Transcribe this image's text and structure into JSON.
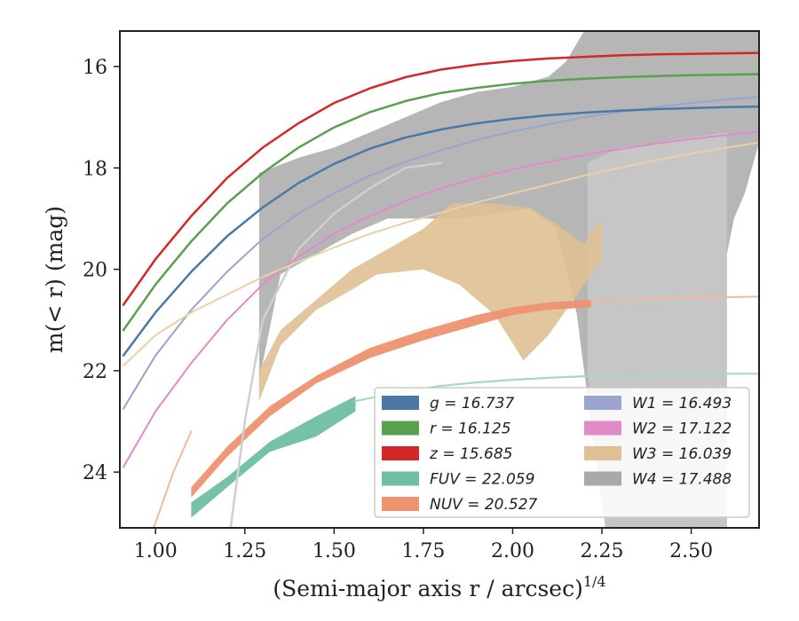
{
  "chart_data": {
    "type": "line",
    "xlabel_main": "(Semi-major axis r / arcsec)",
    "xlabel_power": "1/4",
    "ylabel": "m(< r) (mag)",
    "xlim": [
      0.9,
      2.69
    ],
    "ylim": [
      25.1,
      15.3
    ],
    "y_inverted": true,
    "grid": false,
    "legend_position": "lower-right",
    "x_ticks": [
      1.0,
      1.25,
      1.5,
      1.75,
      2.0,
      2.25,
      2.5
    ],
    "x_tick_labels": [
      "1.00",
      "1.25",
      "1.50",
      "1.75",
      "2.00",
      "2.25",
      "2.50"
    ],
    "y_ticks": [
      16,
      18,
      20,
      22,
      24
    ],
    "y_tick_labels": [
      "16",
      "18",
      "20",
      "22",
      "24"
    ],
    "legend": [
      {
        "label": "g = 16.737",
        "color": "#4c78a8"
      },
      {
        "label": "W1 = 16.493",
        "color": "#9aa4cc"
      },
      {
        "label": "r = 16.125",
        "color": "#59a14f"
      },
      {
        "label": "W2 = 17.122",
        "color": "#e08bc7"
      },
      {
        "label": "z = 15.685",
        "color": "#d62728"
      },
      {
        "label": "W3 = 16.039",
        "color": "#dfc094"
      },
      {
        "label": "FUV = 22.059",
        "color": "#6fbfa3"
      },
      {
        "label": "W4 = 17.488",
        "color": "#a9a9a9"
      },
      {
        "label": "NUV = 20.527",
        "color": "#ee9270"
      }
    ],
    "series": [
      {
        "name": "W4",
        "kind": "band",
        "color": "#a9a9a9",
        "opacity": 0.85,
        "upper": [
          [
            1.29,
            18.1
          ],
          [
            1.4,
            17.8
          ],
          [
            1.5,
            17.6
          ],
          [
            1.6,
            17.3
          ],
          [
            1.7,
            17.0
          ],
          [
            1.8,
            16.7
          ],
          [
            1.9,
            16.5
          ],
          [
            2.0,
            16.4
          ],
          [
            2.1,
            16.2
          ],
          [
            2.15,
            15.9
          ],
          [
            2.2,
            15.3
          ],
          [
            2.69,
            15.3
          ]
        ],
        "lower": [
          [
            2.69,
            17.5
          ],
          [
            2.65,
            18.5
          ],
          [
            2.62,
            19.0
          ],
          [
            2.6,
            19.7
          ],
          [
            2.6,
            25.1
          ],
          [
            2.26,
            25.1
          ],
          [
            2.2,
            22.0
          ],
          [
            2.18,
            20.9
          ],
          [
            2.15,
            20.0
          ],
          [
            2.12,
            19.2
          ],
          [
            2.05,
            18.8
          ],
          [
            1.95,
            18.9
          ],
          [
            1.85,
            19.0
          ],
          [
            1.75,
            19.0
          ],
          [
            1.65,
            19.0
          ],
          [
            1.55,
            19.3
          ],
          [
            1.45,
            19.7
          ],
          [
            1.35,
            20.1
          ],
          [
            1.29,
            22.2
          ]
        ]
      },
      {
        "name": "W4-tail",
        "kind": "band",
        "color": "#d3d3d3",
        "opacity": 0.55,
        "upper": [
          [
            2.21,
            17.9
          ],
          [
            2.3,
            17.6
          ],
          [
            2.4,
            17.5
          ],
          [
            2.5,
            17.4
          ],
          [
            2.6,
            17.3
          ]
        ],
        "lower": [
          [
            2.6,
            25.1
          ],
          [
            2.45,
            25.1
          ],
          [
            2.35,
            25.1
          ],
          [
            2.26,
            25.1
          ],
          [
            2.21,
            22.0
          ]
        ]
      },
      {
        "name": "W3",
        "kind": "band",
        "color": "#dfc094",
        "opacity": 0.9,
        "upper": [
          [
            1.29,
            22.0
          ],
          [
            1.35,
            21.2
          ],
          [
            1.45,
            20.6
          ],
          [
            1.55,
            20.0
          ],
          [
            1.65,
            19.6
          ],
          [
            1.75,
            19.2
          ],
          [
            1.83,
            18.7
          ],
          [
            1.95,
            18.7
          ],
          [
            2.05,
            18.8
          ],
          [
            2.12,
            19.1
          ],
          [
            2.2,
            19.5
          ],
          [
            2.25,
            19.0
          ]
        ],
        "lower": [
          [
            2.25,
            19.8
          ],
          [
            2.2,
            20.3
          ],
          [
            2.1,
            21.3
          ],
          [
            2.03,
            21.8
          ],
          [
            1.95,
            20.9
          ],
          [
            1.85,
            20.3
          ],
          [
            1.75,
            20.0
          ],
          [
            1.62,
            20.1
          ],
          [
            1.55,
            20.4
          ],
          [
            1.45,
            20.8
          ],
          [
            1.35,
            21.5
          ],
          [
            1.29,
            22.6
          ]
        ]
      },
      {
        "name": "FUV",
        "kind": "band",
        "color": "#6fbfa3",
        "opacity": 0.95,
        "upper": [
          [
            1.1,
            24.6
          ],
          [
            1.2,
            24.1
          ],
          [
            1.32,
            23.4
          ],
          [
            1.45,
            22.9
          ],
          [
            1.56,
            22.5
          ]
        ],
        "lower": [
          [
            1.56,
            22.8
          ],
          [
            1.45,
            23.3
          ],
          [
            1.32,
            23.6
          ],
          [
            1.2,
            24.3
          ],
          [
            1.1,
            24.9
          ]
        ]
      },
      {
        "name": "NUV",
        "kind": "band",
        "color": "#ee9270",
        "opacity": 0.95,
        "upper": [
          [
            1.1,
            24.3
          ],
          [
            1.2,
            23.5
          ],
          [
            1.32,
            22.7
          ],
          [
            1.45,
            22.1
          ],
          [
            1.6,
            21.55
          ],
          [
            1.75,
            21.2
          ],
          [
            1.9,
            20.9
          ],
          [
            2.0,
            20.75
          ],
          [
            2.1,
            20.65
          ],
          [
            2.22,
            20.6
          ]
        ],
        "lower": [
          [
            2.22,
            20.75
          ],
          [
            2.1,
            20.8
          ],
          [
            2.0,
            20.9
          ],
          [
            1.9,
            21.1
          ],
          [
            1.75,
            21.4
          ],
          [
            1.6,
            21.75
          ],
          [
            1.45,
            22.25
          ],
          [
            1.32,
            22.9
          ],
          [
            1.2,
            23.7
          ],
          [
            1.1,
            24.5
          ]
        ]
      },
      {
        "name": "W4 curve",
        "kind": "line",
        "color": "#cfcfcf",
        "width": 2.5,
        "points": [
          [
            1.21,
            25.1
          ],
          [
            1.25,
            23.0
          ],
          [
            1.3,
            21.0
          ],
          [
            1.4,
            19.6
          ],
          [
            1.5,
            18.9
          ],
          [
            1.6,
            18.4
          ],
          [
            1.7,
            18.0
          ],
          [
            1.8,
            17.9
          ]
        ]
      },
      {
        "name": "W1",
        "kind": "line",
        "color": "#9aa4cc",
        "width": 2.0,
        "points": [
          [
            0.91,
            22.75
          ],
          [
            1.0,
            21.7
          ],
          [
            1.1,
            20.8
          ],
          [
            1.2,
            20.05
          ],
          [
            1.3,
            19.4
          ],
          [
            1.4,
            18.9
          ],
          [
            1.5,
            18.5
          ],
          [
            1.6,
            18.15
          ],
          [
            1.7,
            17.88
          ],
          [
            1.8,
            17.65
          ],
          [
            1.9,
            17.45
          ],
          [
            2.0,
            17.28
          ],
          [
            2.1,
            17.14
          ],
          [
            2.2,
            17.0
          ],
          [
            2.3,
            16.9
          ],
          [
            2.4,
            16.8
          ],
          [
            2.5,
            16.72
          ],
          [
            2.6,
            16.65
          ],
          [
            2.69,
            16.6
          ]
        ]
      },
      {
        "name": "W2",
        "kind": "line",
        "color": "#e08bc7",
        "width": 2.0,
        "points": [
          [
            0.91,
            23.9
          ],
          [
            1.0,
            22.8
          ],
          [
            1.1,
            21.85
          ],
          [
            1.2,
            21.0
          ],
          [
            1.3,
            20.3
          ],
          [
            1.4,
            19.75
          ],
          [
            1.5,
            19.3
          ],
          [
            1.6,
            18.95
          ],
          [
            1.7,
            18.65
          ],
          [
            1.8,
            18.4
          ],
          [
            1.9,
            18.2
          ],
          [
            2.0,
            18.03
          ],
          [
            2.1,
            17.88
          ],
          [
            2.2,
            17.75
          ],
          [
            2.3,
            17.63
          ],
          [
            2.4,
            17.52
          ],
          [
            2.5,
            17.43
          ],
          [
            2.6,
            17.35
          ],
          [
            2.69,
            17.28
          ]
        ]
      },
      {
        "name": "W3 curve",
        "kind": "line",
        "color": "#e9cfaa",
        "width": 2.0,
        "points": [
          [
            0.91,
            21.9
          ],
          [
            1.0,
            21.3
          ],
          [
            1.1,
            20.85
          ],
          [
            1.2,
            20.5
          ],
          [
            1.3,
            20.15
          ],
          [
            1.4,
            19.85
          ],
          [
            1.5,
            19.57
          ],
          [
            1.6,
            19.3
          ],
          [
            1.7,
            19.08
          ],
          [
            1.8,
            18.88
          ],
          [
            1.9,
            18.68
          ],
          [
            2.0,
            18.5
          ],
          [
            2.1,
            18.33
          ],
          [
            2.2,
            18.15
          ],
          [
            2.3,
            18.0
          ],
          [
            2.4,
            17.85
          ],
          [
            2.5,
            17.72
          ],
          [
            2.6,
            17.6
          ],
          [
            2.69,
            17.5
          ]
        ]
      },
      {
        "name": "FUV curve",
        "kind": "line",
        "color": "#a7d8c4",
        "width": 2.2,
        "points": [
          [
            1.56,
            22.6
          ],
          [
            1.7,
            22.4
          ],
          [
            1.8,
            22.3
          ],
          [
            1.9,
            22.23
          ],
          [
            2.0,
            22.18
          ],
          [
            2.1,
            22.14
          ],
          [
            2.2,
            22.11
          ],
          [
            2.3,
            22.09
          ],
          [
            2.4,
            22.08
          ],
          [
            2.5,
            22.07
          ],
          [
            2.6,
            22.06
          ],
          [
            2.69,
            22.06
          ]
        ]
      },
      {
        "name": "NUV curve",
        "kind": "line",
        "color": "#f2b99f",
        "width": 2.0,
        "points": [
          [
            0.9,
            27.0
          ],
          [
            1.0,
            25.0
          ],
          [
            1.05,
            24.0
          ],
          [
            1.1,
            23.2
          ]
        ]
      },
      {
        "name": "NUV tail",
        "kind": "line",
        "color": "#f2b99f",
        "width": 2.0,
        "points": [
          [
            2.22,
            20.63
          ],
          [
            2.3,
            20.6
          ],
          [
            2.4,
            20.58
          ],
          [
            2.5,
            20.56
          ],
          [
            2.6,
            20.55
          ],
          [
            2.69,
            20.54
          ]
        ]
      },
      {
        "name": "g",
        "kind": "line",
        "color": "#4c78a8",
        "width": 2.5,
        "points": [
          [
            0.91,
            21.7
          ],
          [
            1.0,
            20.85
          ],
          [
            1.1,
            20.05
          ],
          [
            1.2,
            19.35
          ],
          [
            1.3,
            18.78
          ],
          [
            1.4,
            18.3
          ],
          [
            1.5,
            17.92
          ],
          [
            1.6,
            17.62
          ],
          [
            1.7,
            17.4
          ],
          [
            1.8,
            17.24
          ],
          [
            1.9,
            17.12
          ],
          [
            2.0,
            17.03
          ],
          [
            2.1,
            16.96
          ],
          [
            2.2,
            16.91
          ],
          [
            2.3,
            16.87
          ],
          [
            2.4,
            16.84
          ],
          [
            2.5,
            16.82
          ],
          [
            2.6,
            16.8
          ],
          [
            2.69,
            16.79
          ]
        ]
      },
      {
        "name": "r",
        "kind": "line",
        "color": "#59a14f",
        "width": 2.5,
        "points": [
          [
            0.91,
            21.2
          ],
          [
            1.0,
            20.3
          ],
          [
            1.1,
            19.45
          ],
          [
            1.2,
            18.7
          ],
          [
            1.3,
            18.1
          ],
          [
            1.4,
            17.6
          ],
          [
            1.5,
            17.2
          ],
          [
            1.6,
            16.9
          ],
          [
            1.7,
            16.68
          ],
          [
            1.8,
            16.52
          ],
          [
            1.9,
            16.42
          ],
          [
            2.0,
            16.34
          ],
          [
            2.1,
            16.28
          ],
          [
            2.2,
            16.24
          ],
          [
            2.3,
            16.21
          ],
          [
            2.4,
            16.19
          ],
          [
            2.5,
            16.17
          ],
          [
            2.6,
            16.16
          ],
          [
            2.69,
            16.15
          ]
        ]
      },
      {
        "name": "z",
        "kind": "line",
        "color": "#d62728",
        "width": 2.5,
        "points": [
          [
            0.91,
            20.7
          ],
          [
            1.0,
            19.8
          ],
          [
            1.1,
            18.95
          ],
          [
            1.2,
            18.2
          ],
          [
            1.3,
            17.6
          ],
          [
            1.4,
            17.12
          ],
          [
            1.5,
            16.72
          ],
          [
            1.6,
            16.43
          ],
          [
            1.7,
            16.21
          ],
          [
            1.8,
            16.06
          ],
          [
            1.9,
            15.96
          ],
          [
            2.0,
            15.89
          ],
          [
            2.1,
            15.84
          ],
          [
            2.2,
            15.81
          ],
          [
            2.3,
            15.78
          ],
          [
            2.4,
            15.76
          ],
          [
            2.5,
            15.75
          ],
          [
            2.6,
            15.74
          ],
          [
            2.69,
            15.73
          ]
        ]
      }
    ]
  }
}
